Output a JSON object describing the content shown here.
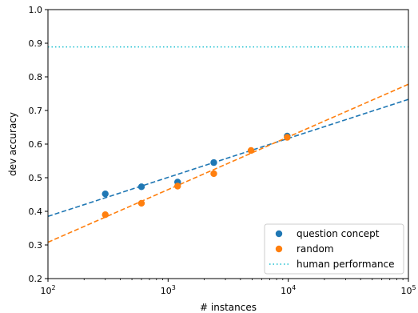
{
  "chart_data": {
    "type": "scatter",
    "xlabel": "# instances",
    "ylabel": "dev accuracy",
    "xscale": "log",
    "xlim": [
      100,
      100000
    ],
    "ylim": [
      0.2,
      1.0
    ],
    "x_ticks": [
      {
        "value": 100,
        "base": "10",
        "exp": "2"
      },
      {
        "value": 1000,
        "base": "10",
        "exp": "3"
      },
      {
        "value": 10000,
        "base": "10",
        "exp": "4"
      },
      {
        "value": 100000,
        "base": "10",
        "exp": "5"
      }
    ],
    "y_ticks": [
      0.2,
      0.3,
      0.4,
      0.5,
      0.6,
      0.7,
      0.8,
      0.9,
      1.0
    ],
    "y_tick_labels": [
      "0.2",
      "0.3",
      "0.4",
      "0.5",
      "0.6",
      "0.7",
      "0.8",
      "0.9",
      "1.0"
    ],
    "grid": false,
    "legend_position": "lower-right",
    "series": [
      {
        "name": "question concept",
        "color": "#1f77b4",
        "points": [
          {
            "x": 300,
            "y": 0.452
          },
          {
            "x": 600,
            "y": 0.473
          },
          {
            "x": 1200,
            "y": 0.487
          },
          {
            "x": 2400,
            "y": 0.545
          },
          {
            "x": 9800,
            "y": 0.624
          }
        ],
        "fit_line": {
          "style": "dashed",
          "points": [
            [
              100,
              0.385
            ],
            [
              100000,
              0.733
            ]
          ]
        }
      },
      {
        "name": "random",
        "color": "#ff7f0e",
        "points": [
          {
            "x": 300,
            "y": 0.39
          },
          {
            "x": 600,
            "y": 0.424
          },
          {
            "x": 1200,
            "y": 0.475
          },
          {
            "x": 2400,
            "y": 0.512
          },
          {
            "x": 4900,
            "y": 0.581
          },
          {
            "x": 9800,
            "y": 0.62
          }
        ],
        "fit_line": {
          "style": "dashed",
          "points": [
            [
              100,
              0.308
            ],
            [
              100000,
              0.778
            ]
          ]
        }
      }
    ],
    "reference_lines": [
      {
        "name": "human performance",
        "y": 0.889,
        "color": "#17becf",
        "style": "dotted"
      }
    ]
  }
}
